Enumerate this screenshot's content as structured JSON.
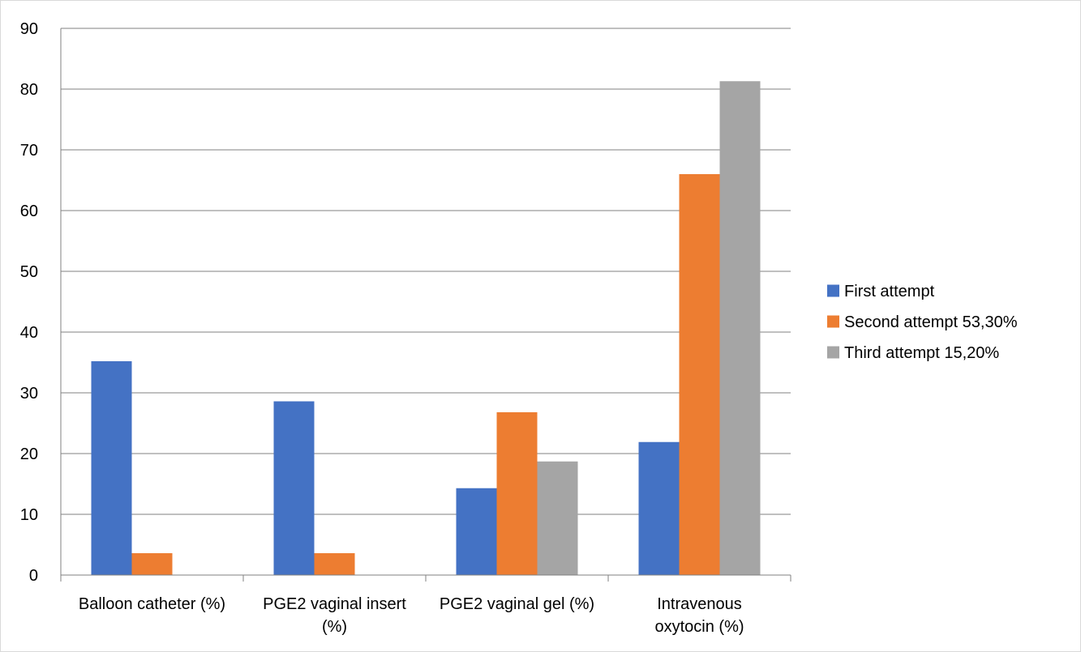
{
  "chart_data": {
    "type": "bar",
    "categories": [
      [
        "Balloon catheter (%)"
      ],
      [
        "PGE2 vaginal insert",
        "(%)"
      ],
      [
        "PGE2 vaginal gel (%)"
      ],
      [
        "Intravenous",
        "oxytocin (%)"
      ]
    ],
    "series": [
      {
        "name": "First attempt",
        "color": "#4472C4",
        "values": [
          35.2,
          28.6,
          14.3,
          21.9
        ]
      },
      {
        "name": "Second attempt 53,30%",
        "color": "#ED7D31",
        "values": [
          3.6,
          3.6,
          26.8,
          66.0
        ]
      },
      {
        "name": "Third attempt 15,20%",
        "color": "#A5A5A5",
        "values": [
          0,
          0,
          18.7,
          81.3
        ]
      }
    ],
    "ylim": [
      0,
      90
    ],
    "yticks": [
      "0",
      "10",
      "20",
      "30",
      "40",
      "50",
      "60",
      "70",
      "80",
      "90"
    ],
    "grid": true,
    "legend_position": "right"
  }
}
